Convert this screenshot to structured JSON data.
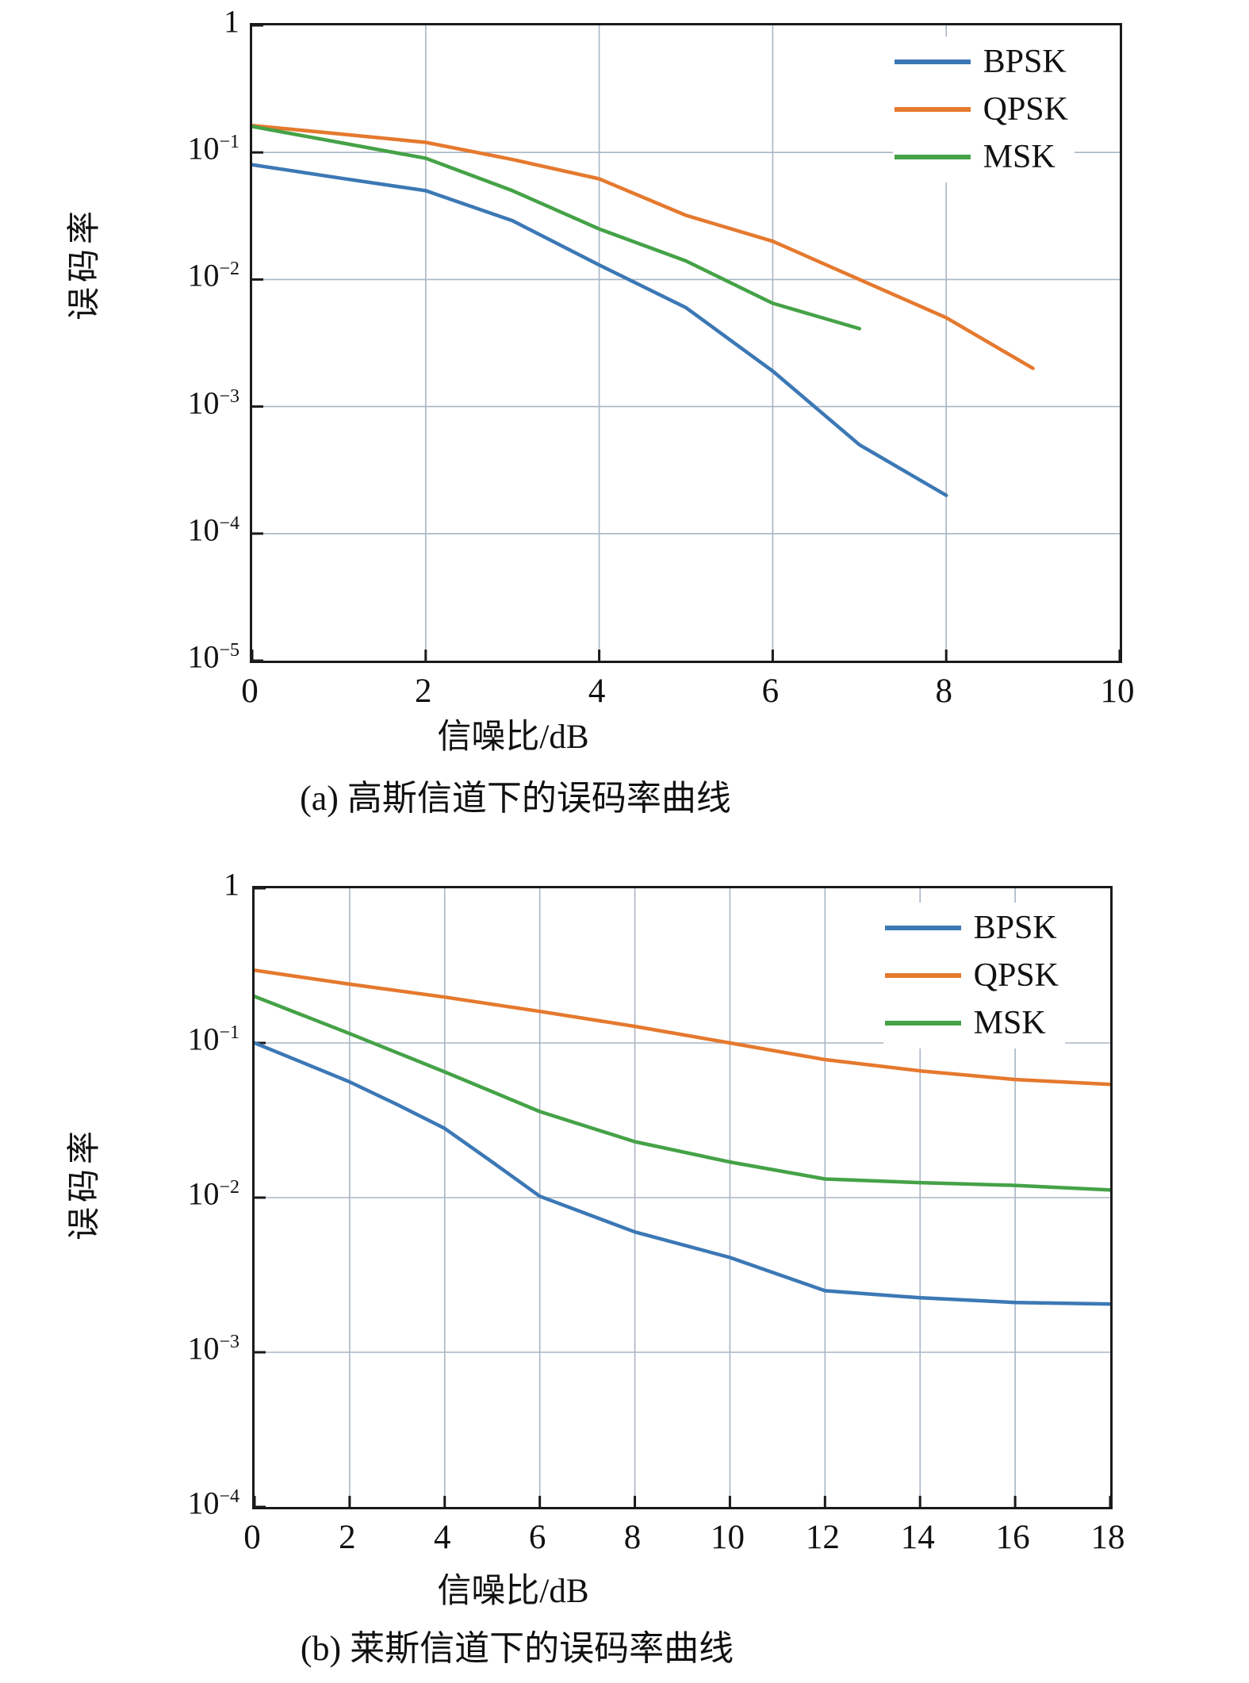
{
  "figure": {
    "background": "#ffffff",
    "axis_color": "#1a1a1a",
    "grid_color": "#a9b6c4",
    "tick_color": "#1a1a1a"
  },
  "chart_data": [
    {
      "type": "line",
      "caption": "(a) 高斯信道下的误码率曲线",
      "xlabel": "信噪比/dB",
      "ylabel": "误码率",
      "x_scale": "linear",
      "y_scale": "log",
      "xlim": [
        0,
        10
      ],
      "xticks": [
        0,
        2,
        4,
        6,
        8,
        10
      ],
      "ylim_exp": [
        0,
        -5
      ],
      "yticks_exp": [
        0,
        -1,
        -2,
        -3,
        -4,
        -5
      ],
      "ytick_labels": [
        "1",
        "10^-1",
        "10^-2",
        "10^-3",
        "10^-4",
        "10^-5"
      ],
      "grid": true,
      "legend_position": "top-right",
      "series": [
        {
          "name": "BPSK",
          "color": "#3c78b5",
          "x": [
            0,
            1,
            2,
            3,
            4,
            5,
            6,
            7,
            8
          ],
          "y": [
            0.08,
            0.063,
            0.05,
            0.029,
            0.013,
            0.006,
            0.0019,
            0.0005,
            0.0002
          ]
        },
        {
          "name": "QPSK",
          "color": "#e5792e",
          "x": [
            0,
            1,
            2,
            3,
            4,
            5,
            6,
            7,
            8,
            9
          ],
          "y": [
            0.163,
            0.14,
            0.12,
            0.088,
            0.062,
            0.032,
            0.02,
            0.01,
            0.005,
            0.002
          ]
        },
        {
          "name": "MSK",
          "color": "#45a247",
          "x": [
            0,
            1,
            2,
            3,
            4,
            5,
            6,
            7
          ],
          "y": [
            0.16,
            0.12,
            0.09,
            0.05,
            0.025,
            0.014,
            0.0065,
            0.0041
          ]
        }
      ]
    },
    {
      "type": "line",
      "caption": "(b) 莱斯信道下的误码率曲线",
      "xlabel": "信噪比/dB",
      "ylabel": "误码率",
      "x_scale": "linear",
      "y_scale": "log",
      "xlim": [
        0,
        18
      ],
      "xticks": [
        0,
        2,
        4,
        6,
        8,
        10,
        12,
        14,
        16,
        18
      ],
      "ylim_exp": [
        0,
        -4
      ],
      "yticks_exp": [
        0,
        -1,
        -2,
        -3,
        -4
      ],
      "ytick_labels": [
        "1",
        "10^-1",
        "10^-2",
        "10^-3",
        "10^-4"
      ],
      "grid": true,
      "legend_position": "top-right",
      "series": [
        {
          "name": "BPSK",
          "color": "#3c78b5",
          "x": [
            0,
            1,
            2,
            3,
            4,
            5,
            6,
            8,
            10,
            12,
            14,
            16,
            18
          ],
          "y": [
            0.1,
            0.075,
            0.056,
            0.04,
            0.028,
            0.017,
            0.0102,
            0.006,
            0.0041,
            0.0025,
            0.00225,
            0.0021,
            0.00205
          ]
        },
        {
          "name": "QPSK",
          "color": "#e5792e",
          "x": [
            0,
            2,
            4,
            6,
            8,
            10,
            12,
            14,
            16,
            18
          ],
          "y": [
            0.295,
            0.24,
            0.198,
            0.16,
            0.128,
            0.1,
            0.078,
            0.066,
            0.058,
            0.054
          ]
        },
        {
          "name": "MSK",
          "color": "#45a247",
          "x": [
            0,
            2,
            4,
            6,
            8,
            10,
            12,
            14,
            16,
            18
          ],
          "y": [
            0.2,
            0.115,
            0.065,
            0.036,
            0.023,
            0.017,
            0.0132,
            0.0125,
            0.012,
            0.0112
          ]
        }
      ]
    }
  ]
}
